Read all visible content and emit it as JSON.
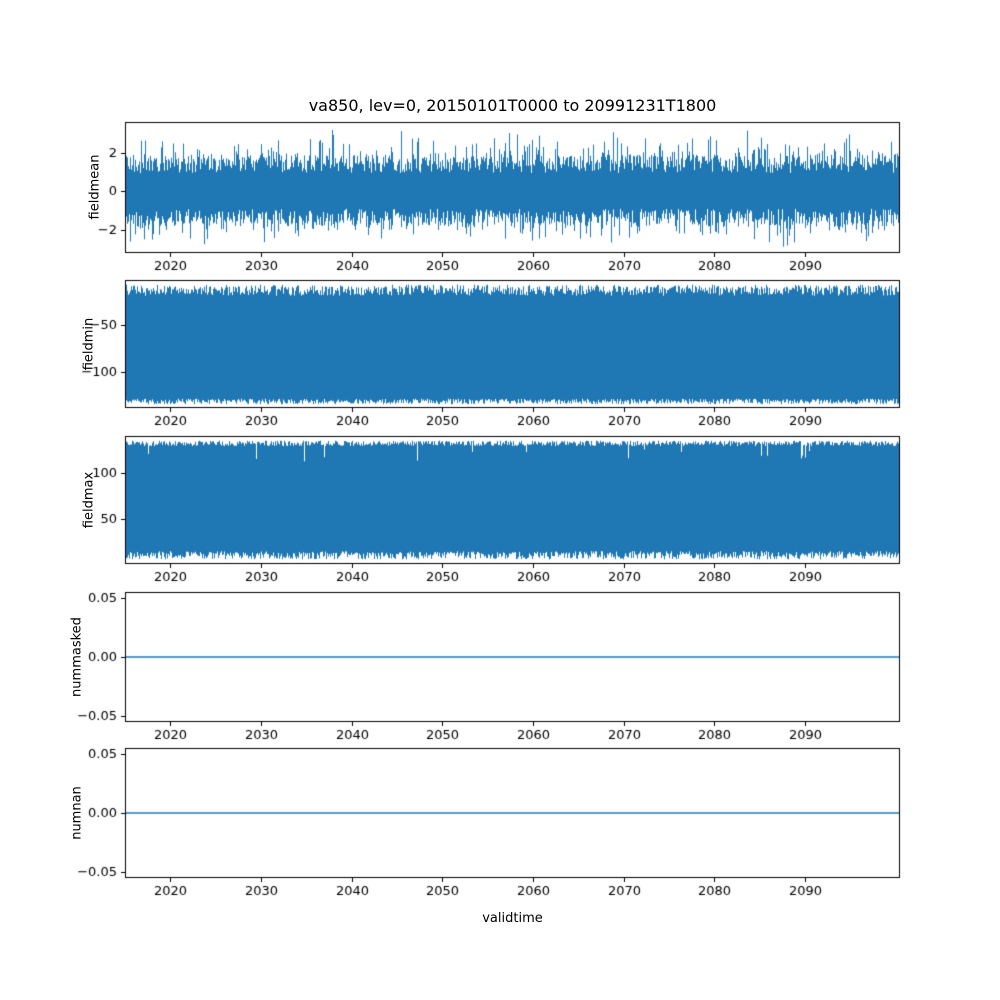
{
  "figure": {
    "title": "va850, lev=0, 20150101T0000 to 20991231T1800",
    "xlabel": "validtime",
    "series_color": "#1f77b4",
    "background": "#ffffff"
  },
  "x_axis": {
    "range": [
      2015,
      2100.5
    ],
    "ticks": [
      2020,
      2030,
      2040,
      2050,
      2060,
      2070,
      2080,
      2090
    ],
    "tick_labels": [
      "2020",
      "2030",
      "2040",
      "2050",
      "2060",
      "2070",
      "2080",
      "2090"
    ]
  },
  "chart_data": [
    {
      "type": "line",
      "ylabel": "fieldmean",
      "ylim": [
        -3.2,
        3.6
      ],
      "yticks": [
        2,
        0,
        -2
      ],
      "ytick_labels": [
        "2",
        "0",
        "−2"
      ],
      "series": {
        "kind": "noise",
        "typical_extent": [
          -1.8,
          1.9
        ],
        "max_extent": [
          -2.9,
          3.3
        ]
      }
    },
    {
      "type": "line",
      "ylabel": "fieldmin",
      "ylim": [
        -139,
        -1
      ],
      "yticks": [
        -50,
        -100
      ],
      "ytick_labels": [
        "−50",
        "−100"
      ],
      "series": {
        "kind": "band",
        "top_edge": [
          -18,
          -6
        ],
        "bottom_edge": [
          -135,
          -129
        ]
      }
    },
    {
      "type": "line",
      "ylabel": "fieldmax",
      "ylim": [
        1,
        140
      ],
      "yticks": [
        100,
        50
      ],
      "ytick_labels": [
        "100",
        "50"
      ],
      "series": {
        "kind": "band",
        "top_edge": [
          129,
          135
        ],
        "bottom_edge": [
          6,
          15
        ],
        "dips": {
          "prob": 0.01,
          "range": [
            112,
            126
          ]
        }
      }
    },
    {
      "type": "line",
      "ylabel": "nummasked",
      "ylim": [
        -0.055,
        0.055
      ],
      "yticks": [
        0.05,
        0.0,
        -0.05
      ],
      "ytick_labels": [
        "0.05",
        "0.00",
        "−0.05"
      ],
      "series": {
        "kind": "constant",
        "value": 0
      }
    },
    {
      "type": "line",
      "ylabel": "numnan",
      "ylim": [
        -0.055,
        0.055
      ],
      "yticks": [
        0.05,
        0.0,
        -0.05
      ],
      "ytick_labels": [
        "0.05",
        "0.00",
        "−0.05"
      ],
      "series": {
        "kind": "constant",
        "value": 0
      }
    }
  ]
}
